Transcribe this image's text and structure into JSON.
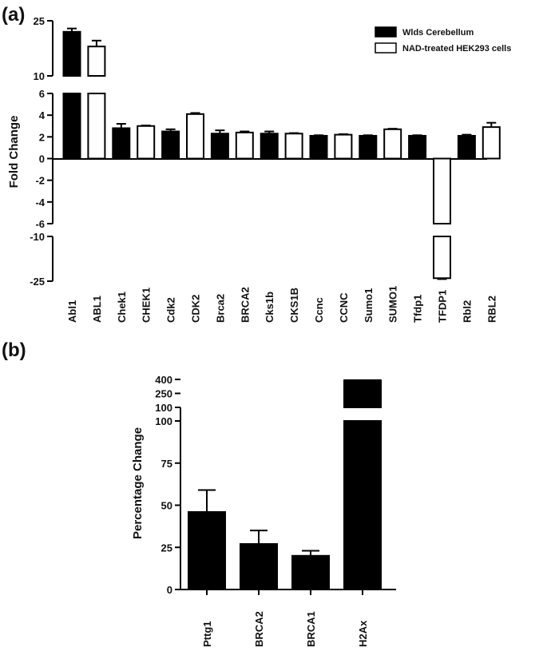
{
  "chart_data": [
    {
      "panel": "(a)",
      "type": "bar",
      "ylabel": "Fold Change",
      "y_tick_labels": [
        "25",
        "10",
        "6",
        "4",
        "2",
        "0",
        "-2",
        "-4",
        "-6",
        "-10",
        "-25"
      ],
      "legend": [
        {
          "name": "Wlds Cerebellum",
          "color": "#000000"
        },
        {
          "name": "NAD-treated HEK293 cells",
          "color": "#ffffff"
        }
      ],
      "categories": [
        "Abl1",
        "ABL1",
        "Chek1",
        "CHEK1",
        "Cdk2",
        "CDK2",
        "Brca2",
        "BRCA2",
        "Cks1b",
        "CKS1B",
        "Ccnc",
        "CCNC",
        "Sumo1",
        "SUMO1",
        "Tfdp1",
        "TFDP1",
        "Rbl2",
        "RBL2"
      ],
      "values": [
        22,
        18,
        2.8,
        3.0,
        2.5,
        4.1,
        2.3,
        2.4,
        2.3,
        2.3,
        2.1,
        2.2,
        2.1,
        2.7,
        2.1,
        -24,
        2.1,
        2.9
      ],
      "errors": [
        0.9,
        1.6,
        0.4,
        0.05,
        0.2,
        0.1,
        0.3,
        0.1,
        0.2,
        0.05,
        0.05,
        0.05,
        0.05,
        0.05,
        0.05,
        0.3,
        0.1,
        0.4
      ],
      "series_index": [
        0,
        1,
        0,
        1,
        0,
        1,
        0,
        1,
        0,
        1,
        0,
        1,
        0,
        1,
        0,
        1,
        0,
        1
      ]
    },
    {
      "panel": "(b)",
      "type": "bar",
      "ylabel": "Percentage Change",
      "y_tick_labels": [
        "400",
        "250",
        "100",
        "100",
        "75",
        "50",
        "25",
        "0"
      ],
      "categories": [
        "Pttg1",
        "BRCA2",
        "BRCA1",
        "H2Ax"
      ],
      "values": [
        46,
        27,
        20,
        390
      ],
      "errors": [
        13,
        8,
        3,
        3
      ]
    }
  ]
}
